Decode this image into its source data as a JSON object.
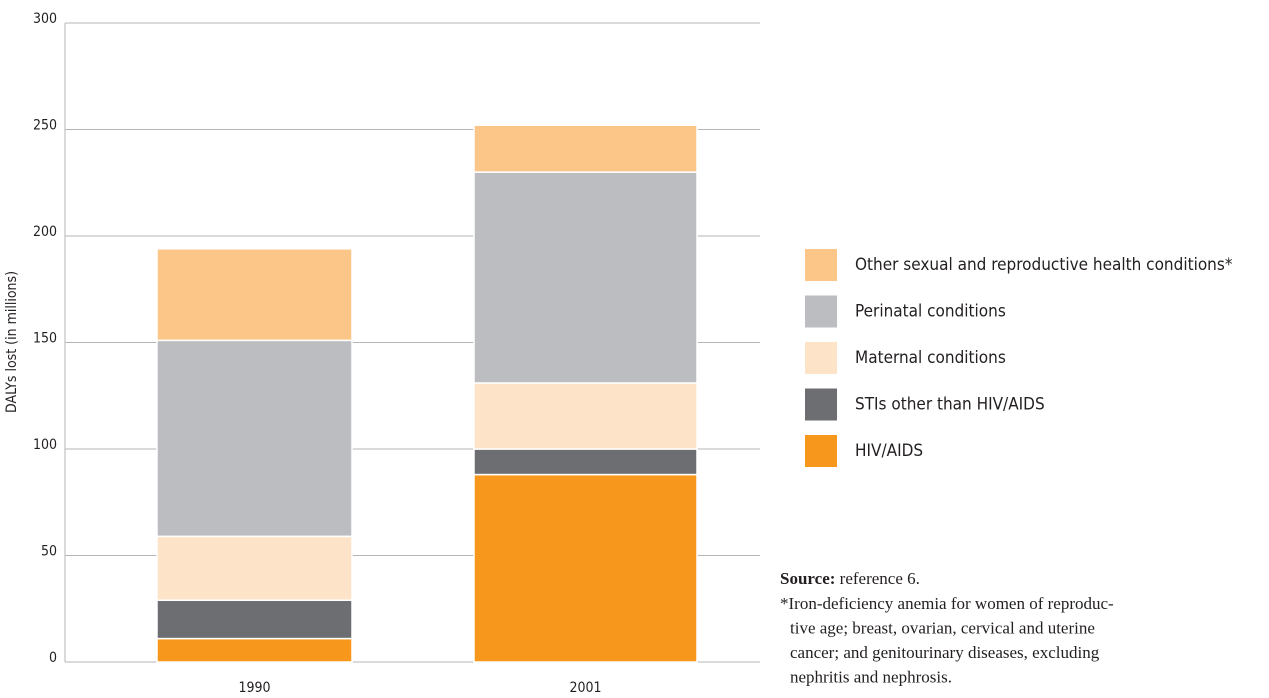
{
  "chart_data": {
    "type": "stacked_bar",
    "y_label": "DALYs lost (in millions)",
    "categories": [
      "1990",
      "2001"
    ],
    "series": [
      {
        "name": "HIV/AIDS",
        "color": "#f7981d",
        "values": [
          11,
          88
        ]
      },
      {
        "name": "STIs other than HIV/AIDS",
        "color": "#6d6e71",
        "values": [
          18,
          12
        ]
      },
      {
        "name": "Maternal conditions",
        "color": "#fde4c8",
        "values": [
          30,
          31
        ]
      },
      {
        "name": "Perinatal conditions",
        "color": "#bcbdc0",
        "values": [
          92,
          99
        ]
      },
      {
        "name": "Other sexual and reproductive health conditions*",
        "color": "#fdc689",
        "values": [
          43,
          22
        ]
      }
    ],
    "ylim": [
      0,
      300
    ],
    "yticks": [
      0,
      50,
      100,
      150,
      200,
      250,
      300
    ],
    "grid": true,
    "legend": "right",
    "source_label": "Source:",
    "source_text": "reference 6.",
    "footnote": [
      "*Iron-deficiency anemia for women of reproduc-",
      "tive age; breast, ovarian, cervical and uterine",
      "cancer; and genitourinary diseases, excluding",
      "nephritis and nephrosis."
    ]
  }
}
